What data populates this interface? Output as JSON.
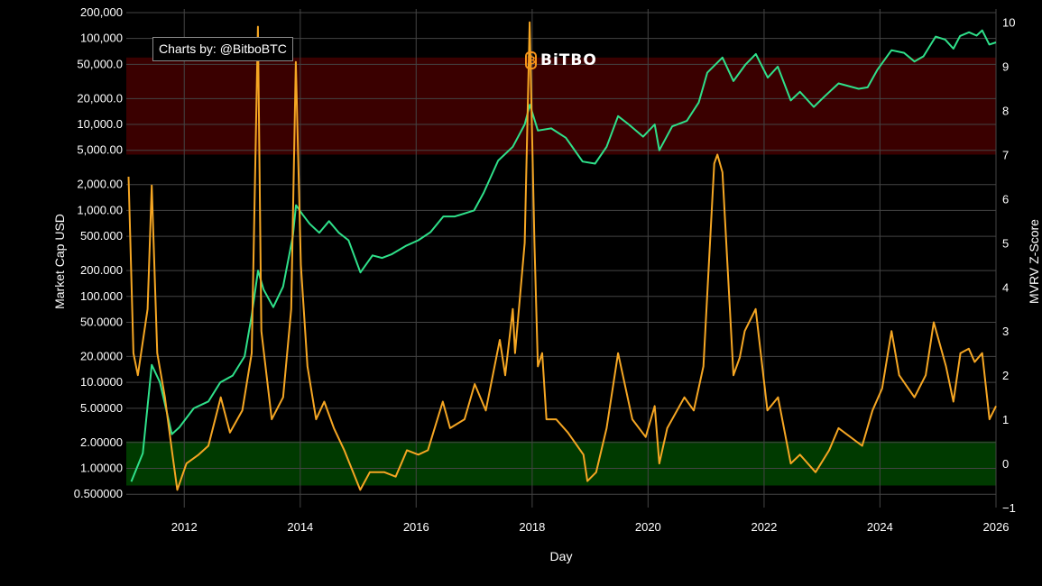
{
  "credit": "Charts by: @BitboBTC",
  "logo": {
    "text": "BiTBO",
    "color": "#f7931a"
  },
  "chart_data": {
    "type": "line",
    "xlabel": "Day",
    "ylabel_left": "Market Cap USD",
    "ylabel_right": "MVRV Z-Score",
    "x_ticks": [
      "2012",
      "2014",
      "2016",
      "2018",
      "2020",
      "2022",
      "2024",
      "2026"
    ],
    "x_range": [
      "2011-01-01",
      "2026-01-01"
    ],
    "y_left_scale": "log",
    "y_left_range": [
      0.35,
      220000
    ],
    "y_left_ticks": [
      {
        "v": 200000,
        "label": "200,000"
      },
      {
        "v": 100000,
        "label": "100,000"
      },
      {
        "v": 50000,
        "label": "50,000.0"
      },
      {
        "v": 20000,
        "label": "20,000.0"
      },
      {
        "v": 10000,
        "label": "10,000.0"
      },
      {
        "v": 5000,
        "label": "5,000.00"
      },
      {
        "v": 2000,
        "label": "2,000.00"
      },
      {
        "v": 1000,
        "label": "1,000.00"
      },
      {
        "v": 500,
        "label": "500.000"
      },
      {
        "v": 200,
        "label": "200.000"
      },
      {
        "v": 100,
        "label": "100.000"
      },
      {
        "v": 50,
        "label": "50.0000"
      },
      {
        "v": 20,
        "label": "20.0000"
      },
      {
        "v": 10,
        "label": "10.0000"
      },
      {
        "v": 5,
        "label": "5.00000"
      },
      {
        "v": 2,
        "label": "2.00000"
      },
      {
        "v": 1,
        "label": "1.00000"
      },
      {
        "v": 0.5,
        "label": "0.500000"
      }
    ],
    "y_right_range": [
      -1,
      10.3
    ],
    "y_right_ticks": [
      {
        "v": 10,
        "label": "10"
      },
      {
        "v": 9,
        "label": "9"
      },
      {
        "v": 8,
        "label": "8"
      },
      {
        "v": 7,
        "label": "7"
      },
      {
        "v": 6,
        "label": "6"
      },
      {
        "v": 5,
        "label": "5"
      },
      {
        "v": 4,
        "label": "4"
      },
      {
        "v": 3,
        "label": "3"
      },
      {
        "v": 2,
        "label": "2"
      },
      {
        "v": 1,
        "label": "1"
      },
      {
        "v": 0,
        "label": "0"
      },
      {
        "v": -1,
        "label": "−1"
      }
    ],
    "bands": [
      {
        "kind": "overvalued",
        "from": 7,
        "to": 9.2,
        "color": "#3a0000"
      },
      {
        "kind": "undervalued",
        "from": -0.5,
        "to": 0.5,
        "color": "#003a00"
      }
    ],
    "grid": true,
    "series": [
      {
        "key": "market_cap",
        "axis": "left",
        "color": "#2fe08a",
        "points": [
          [
            "2011-02-01",
            0.7
          ],
          [
            "2011-04-15",
            1.5
          ],
          [
            "2011-06-10",
            16
          ],
          [
            "2011-08-01",
            10
          ],
          [
            "2011-10-15",
            2.5
          ],
          [
            "2011-12-01",
            3
          ],
          [
            "2012-03-01",
            5
          ],
          [
            "2012-06-01",
            6
          ],
          [
            "2012-08-15",
            10
          ],
          [
            "2012-11-01",
            12
          ],
          [
            "2013-01-15",
            20
          ],
          [
            "2013-03-01",
            60
          ],
          [
            "2013-04-10",
            200
          ],
          [
            "2013-05-15",
            120
          ],
          [
            "2013-07-15",
            75
          ],
          [
            "2013-09-15",
            130
          ],
          [
            "2013-11-15",
            500
          ],
          [
            "2013-12-05",
            1150
          ],
          [
            "2014-01-15",
            900
          ],
          [
            "2014-03-01",
            700
          ],
          [
            "2014-05-01",
            550
          ],
          [
            "2014-07-01",
            750
          ],
          [
            "2014-09-01",
            550
          ],
          [
            "2014-11-01",
            450
          ],
          [
            "2015-01-15",
            190
          ],
          [
            "2015-04-01",
            300
          ],
          [
            "2015-06-01",
            280
          ],
          [
            "2015-08-01",
            310
          ],
          [
            "2015-11-01",
            390
          ],
          [
            "2016-01-15",
            450
          ],
          [
            "2016-04-01",
            560
          ],
          [
            "2016-06-20",
            850
          ],
          [
            "2016-09-01",
            850
          ],
          [
            "2016-12-31",
            1000
          ],
          [
            "2017-03-01",
            1600
          ],
          [
            "2017-06-01",
            3800
          ],
          [
            "2017-09-01",
            5500
          ],
          [
            "2017-11-15",
            10000
          ],
          [
            "2017-12-17",
            17000
          ],
          [
            "2018-02-06",
            8500
          ],
          [
            "2018-05-01",
            9000
          ],
          [
            "2018-08-01",
            7000
          ],
          [
            "2018-11-15",
            3700
          ],
          [
            "2019-02-01",
            3500
          ],
          [
            "2019-04-15",
            5500
          ],
          [
            "2019-06-26",
            12500
          ],
          [
            "2019-09-01",
            10000
          ],
          [
            "2019-12-01",
            7200
          ],
          [
            "2020-02-12",
            10000
          ],
          [
            "2020-03-12",
            5000
          ],
          [
            "2020-06-01",
            9500
          ],
          [
            "2020-09-01",
            11000
          ],
          [
            "2020-11-15",
            18000
          ],
          [
            "2021-01-08",
            40000
          ],
          [
            "2021-04-14",
            60000
          ],
          [
            "2021-06-22",
            32000
          ],
          [
            "2021-09-07",
            50000
          ],
          [
            "2021-11-10",
            66000
          ],
          [
            "2022-01-24",
            35000
          ],
          [
            "2022-03-28",
            47000
          ],
          [
            "2022-06-18",
            19000
          ],
          [
            "2022-08-15",
            24000
          ],
          [
            "2022-11-10",
            16000
          ],
          [
            "2023-01-15",
            21000
          ],
          [
            "2023-04-15",
            30000
          ],
          [
            "2023-08-20",
            26000
          ],
          [
            "2023-10-15",
            27000
          ],
          [
            "2023-12-15",
            43000
          ],
          [
            "2024-03-14",
            73000
          ],
          [
            "2024-06-01",
            68000
          ],
          [
            "2024-08-05",
            54000
          ],
          [
            "2024-10-01",
            62000
          ],
          [
            "2024-12-17",
            105000
          ],
          [
            "2025-02-15",
            97000
          ],
          [
            "2025-04-08",
            76000
          ],
          [
            "2025-05-20",
            107000
          ],
          [
            "2025-07-15",
            118000
          ],
          [
            "2025-09-01",
            108000
          ],
          [
            "2025-10-06",
            124000
          ],
          [
            "2025-11-20",
            85000
          ],
          [
            "2026-01-01",
            90000
          ]
        ]
      },
      {
        "key": "mvrv_z_score",
        "axis": "right",
        "color": "#f5a623",
        "points": [
          [
            "2011-01-15",
            6.5
          ],
          [
            "2011-02-15",
            2.5
          ],
          [
            "2011-03-15",
            2
          ],
          [
            "2011-05-15",
            3.5
          ],
          [
            "2011-06-10",
            6.3
          ],
          [
            "2011-07-15",
            2.5
          ],
          [
            "2011-09-01",
            1.5
          ],
          [
            "2011-10-15",
            0.3
          ],
          [
            "2011-11-18",
            -0.6
          ],
          [
            "2012-01-15",
            0
          ],
          [
            "2012-04-01",
            0.2
          ],
          [
            "2012-06-01",
            0.4
          ],
          [
            "2012-08-18",
            1.5
          ],
          [
            "2012-10-15",
            0.7
          ],
          [
            "2013-01-01",
            1.2
          ],
          [
            "2013-03-01",
            2.5
          ],
          [
            "2013-04-09",
            9.9
          ],
          [
            "2013-05-01",
            3
          ],
          [
            "2013-07-05",
            1
          ],
          [
            "2013-09-15",
            1.5
          ],
          [
            "2013-11-05",
            3.5
          ],
          [
            "2013-12-04",
            9.1
          ],
          [
            "2014-01-05",
            4.5
          ],
          [
            "2014-02-15",
            2.2
          ],
          [
            "2014-04-11",
            1
          ],
          [
            "2014-06-01",
            1.4
          ],
          [
            "2014-08-01",
            0.8
          ],
          [
            "2014-10-05",
            0.3
          ],
          [
            "2015-01-14",
            -0.6
          ],
          [
            "2015-03-15",
            -0.2
          ],
          [
            "2015-06-15",
            -0.2
          ],
          [
            "2015-08-25",
            -0.3
          ],
          [
            "2015-11-04",
            0.3
          ],
          [
            "2016-01-15",
            0.2
          ],
          [
            "2016-03-15",
            0.3
          ],
          [
            "2016-06-17",
            1.4
          ],
          [
            "2016-08-02",
            0.8
          ],
          [
            "2016-11-01",
            1
          ],
          [
            "2017-01-04",
            1.8
          ],
          [
            "2017-03-15",
            1.2
          ],
          [
            "2017-06-11",
            2.8
          ],
          [
            "2017-07-15",
            2
          ],
          [
            "2017-09-01",
            3.5
          ],
          [
            "2017-09-15",
            2.5
          ],
          [
            "2017-11-15",
            5
          ],
          [
            "2017-12-16",
            10
          ],
          [
            "2018-01-15",
            5
          ],
          [
            "2018-02-06",
            2.2
          ],
          [
            "2018-03-05",
            2.5
          ],
          [
            "2018-04-01",
            1
          ],
          [
            "2018-06-01",
            1
          ],
          [
            "2018-08-14",
            0.7
          ],
          [
            "2018-11-20",
            0.2
          ],
          [
            "2018-12-15",
            -0.4
          ],
          [
            "2019-02-08",
            -0.2
          ],
          [
            "2019-04-15",
            0.8
          ],
          [
            "2019-06-26",
            2.5
          ],
          [
            "2019-09-24",
            1
          ],
          [
            "2019-12-17",
            0.6
          ],
          [
            "2020-02-12",
            1.3
          ],
          [
            "2020-03-12",
            0
          ],
          [
            "2020-05-01",
            0.8
          ],
          [
            "2020-08-17",
            1.5
          ],
          [
            "2020-10-15",
            1.2
          ],
          [
            "2020-12-15",
            2.2
          ],
          [
            "2021-02-21",
            6.8
          ],
          [
            "2021-03-13",
            7
          ],
          [
            "2021-04-14",
            6.6
          ],
          [
            "2021-06-22",
            2
          ],
          [
            "2021-08-01",
            2.4
          ],
          [
            "2021-09-01",
            3
          ],
          [
            "2021-11-09",
            3.5
          ],
          [
            "2022-01-22",
            1.2
          ],
          [
            "2022-03-30",
            1.5
          ],
          [
            "2022-06-18",
            0
          ],
          [
            "2022-08-15",
            0.2
          ],
          [
            "2022-11-21",
            -0.2
          ],
          [
            "2023-02-15",
            0.3
          ],
          [
            "2023-04-15",
            0.8
          ],
          [
            "2023-09-11",
            0.4
          ],
          [
            "2023-11-15",
            1.2
          ],
          [
            "2024-01-15",
            1.7
          ],
          [
            "2024-03-14",
            3
          ],
          [
            "2024-05-01",
            2
          ],
          [
            "2024-08-05",
            1.5
          ],
          [
            "2024-10-15",
            2
          ],
          [
            "2024-12-05",
            3.2
          ],
          [
            "2025-02-20",
            2.2
          ],
          [
            "2025-04-08",
            1.4
          ],
          [
            "2025-05-22",
            2.5
          ],
          [
            "2025-07-14",
            2.6
          ],
          [
            "2025-08-20",
            2.3
          ],
          [
            "2025-10-06",
            2.5
          ],
          [
            "2025-11-21",
            1.0
          ],
          [
            "2026-01-01",
            1.3
          ]
        ]
      }
    ]
  }
}
